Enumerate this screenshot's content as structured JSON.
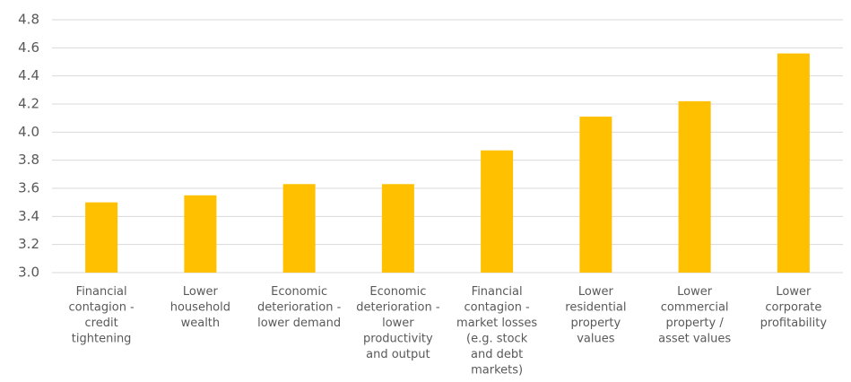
{
  "chart_data": {
    "type": "bar",
    "categories": [
      "Financial\ncontagion -\ncredit\ntightening",
      "Lower\nhousehold\nwealth",
      "Economic\ndeterioration -\nlower demand",
      "Economic\ndeterioration -\nlower\nproductivity\nand output",
      "Financial\ncontagion -\nmarket losses\n(e.g. stock\nand debt\nmarkets)",
      "Lower\nresidential\nproperty\nvalues",
      "Lower\ncommercial\nproperty /\nasset values",
      "Lower\ncorporate\nprofitability"
    ],
    "values": [
      3.5,
      3.55,
      3.63,
      3.63,
      3.87,
      4.11,
      4.22,
      4.56
    ],
    "color": "#ffc000",
    "ylim": [
      3,
      4.8
    ],
    "yticks": [
      {
        "value": 3,
        "label": "3.0"
      },
      3.2,
      3.4,
      3.6,
      3.8,
      {
        "value": 4,
        "label": "4.0"
      },
      4.2,
      4.4,
      4.6,
      4.8
    ],
    "grid": true
  }
}
